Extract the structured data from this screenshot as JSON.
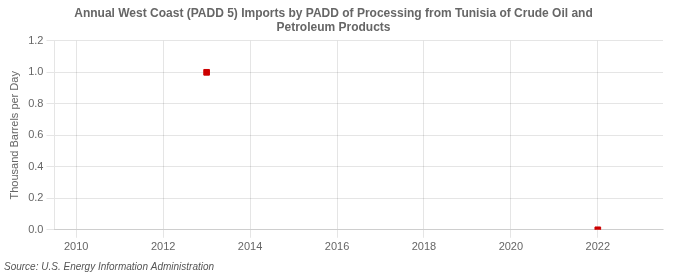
{
  "chart_data": {
    "type": "scatter",
    "title": "Annual West Coast (PADD 5) Imports by PADD of Processing from Tunisia of Crude Oil and\nPetroleum Products",
    "y_label": "Thousand Barrels per Day",
    "source": "Source: U.S. Energy Information Administration",
    "x": [
      2013,
      2022
    ],
    "values": [
      1.0,
      0.0
    ],
    "color": "#cc0000",
    "marker": "square",
    "xlim": [
      2009.5,
      2023.5
    ],
    "ylim": [
      0.0,
      1.2
    ],
    "xticks": [
      2010,
      2012,
      2014,
      2016,
      2018,
      2020,
      2022
    ],
    "yticks": [
      {
        "value": 0.0,
        "label": "0.0"
      },
      0.2,
      0.4,
      0.6,
      0.8,
      {
        "value": 1.0,
        "label": "1.0"
      },
      1.2
    ],
    "grid": true,
    "legend": false
  }
}
